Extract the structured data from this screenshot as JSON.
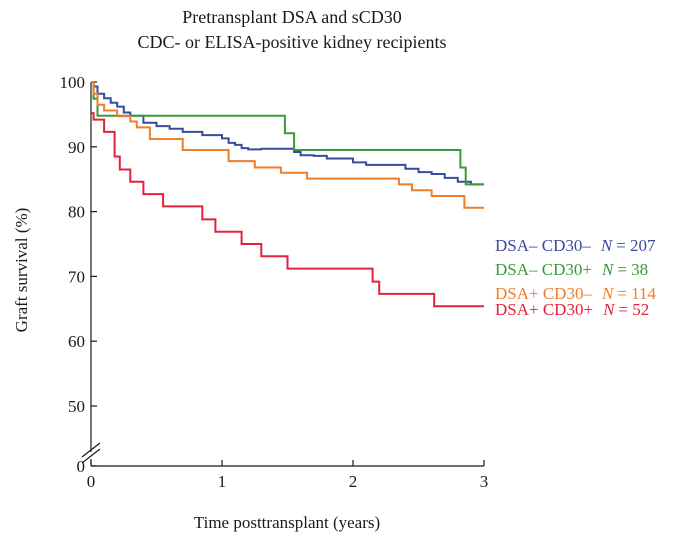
{
  "chart_data": {
    "type": "line",
    "step": true,
    "title": "Pretransplant DSA and sCD30",
    "subtitle": "CDC- or ELISA-positive kidney recipients",
    "xlabel": "Time posttransplant (years)",
    "ylabel": "Graft survival (%)",
    "xlim": [
      0,
      3
    ],
    "ylim_displayed": [
      45,
      100
    ],
    "axis_break": true,
    "x_ticks": [
      "0",
      "1",
      "2",
      "3"
    ],
    "y_ticks": [
      "0",
      "50",
      "60",
      "70",
      "80",
      "90",
      "100"
    ],
    "grid": false,
    "legend_position": "right",
    "series": [
      {
        "name": "DSA– CD30–",
        "n_label": "N",
        "n_value": "= 207",
        "color": "#3a4a9c",
        "x": [
          0,
          0.02,
          0.05,
          0.1,
          0.15,
          0.2,
          0.25,
          0.3,
          0.4,
          0.5,
          0.6,
          0.7,
          0.85,
          1.0,
          1.05,
          1.1,
          1.15,
          1.2,
          1.3,
          1.5,
          1.55,
          1.6,
          1.7,
          1.8,
          2.0,
          2.1,
          2.4,
          2.5,
          2.6,
          2.7,
          2.8,
          2.85,
          2.9,
          3.0
        ],
        "y": [
          100,
          99.3,
          98.2,
          97.5,
          96.8,
          96.2,
          95.3,
          94.8,
          93.7,
          93.2,
          92.8,
          92.3,
          91.8,
          91.3,
          90.6,
          90.3,
          89.8,
          89.6,
          89.7,
          89.7,
          89.2,
          88.7,
          88.6,
          88.2,
          87.6,
          87.2,
          86.6,
          86.1,
          85.8,
          85.2,
          84.6,
          84.6,
          84.2,
          84.2
        ]
      },
      {
        "name": "DSA– CD30+",
        "n_label": "N",
        "n_value": "= 38",
        "color": "#3a9a3a",
        "x": [
          0,
          0.02,
          0.05,
          0.1,
          1.48,
          1.55,
          2.82,
          2.86,
          2.9,
          3.0
        ],
        "y": [
          100,
          97.4,
          94.8,
          94.8,
          92.1,
          89.5,
          86.8,
          84.2,
          84.2,
          84.2
        ]
      },
      {
        "name": "DSA+ CD30–",
        "n_label": "N",
        "n_value": "= 114",
        "color": "#ef7d2a",
        "x": [
          0,
          0.02,
          0.05,
          0.1,
          0.2,
          0.3,
          0.35,
          0.45,
          0.7,
          1.05,
          1.25,
          1.45,
          1.65,
          2.35,
          2.45,
          2.6,
          2.85,
          3.0
        ],
        "y": [
          100,
          98.2,
          96.5,
          95.6,
          94.7,
          93.9,
          93.0,
          91.2,
          89.5,
          87.8,
          86.8,
          86.0,
          85.1,
          84.2,
          83.3,
          82.4,
          80.6,
          80.6
        ]
      },
      {
        "name": "DSA+ CD30+",
        "n_label": "N",
        "n_value": "= 52",
        "color": "#e2213c",
        "x": [
          0,
          0.02,
          0.1,
          0.18,
          0.22,
          0.3,
          0.4,
          0.55,
          0.85,
          0.95,
          1.15,
          1.3,
          1.5,
          2.15,
          2.2,
          2.62,
          3.0
        ],
        "y": [
          95.2,
          94.2,
          92.3,
          88.5,
          86.5,
          84.6,
          82.7,
          80.8,
          78.8,
          76.9,
          75.0,
          73.1,
          71.2,
          69.2,
          67.3,
          65.4,
          65.4
        ]
      }
    ]
  }
}
